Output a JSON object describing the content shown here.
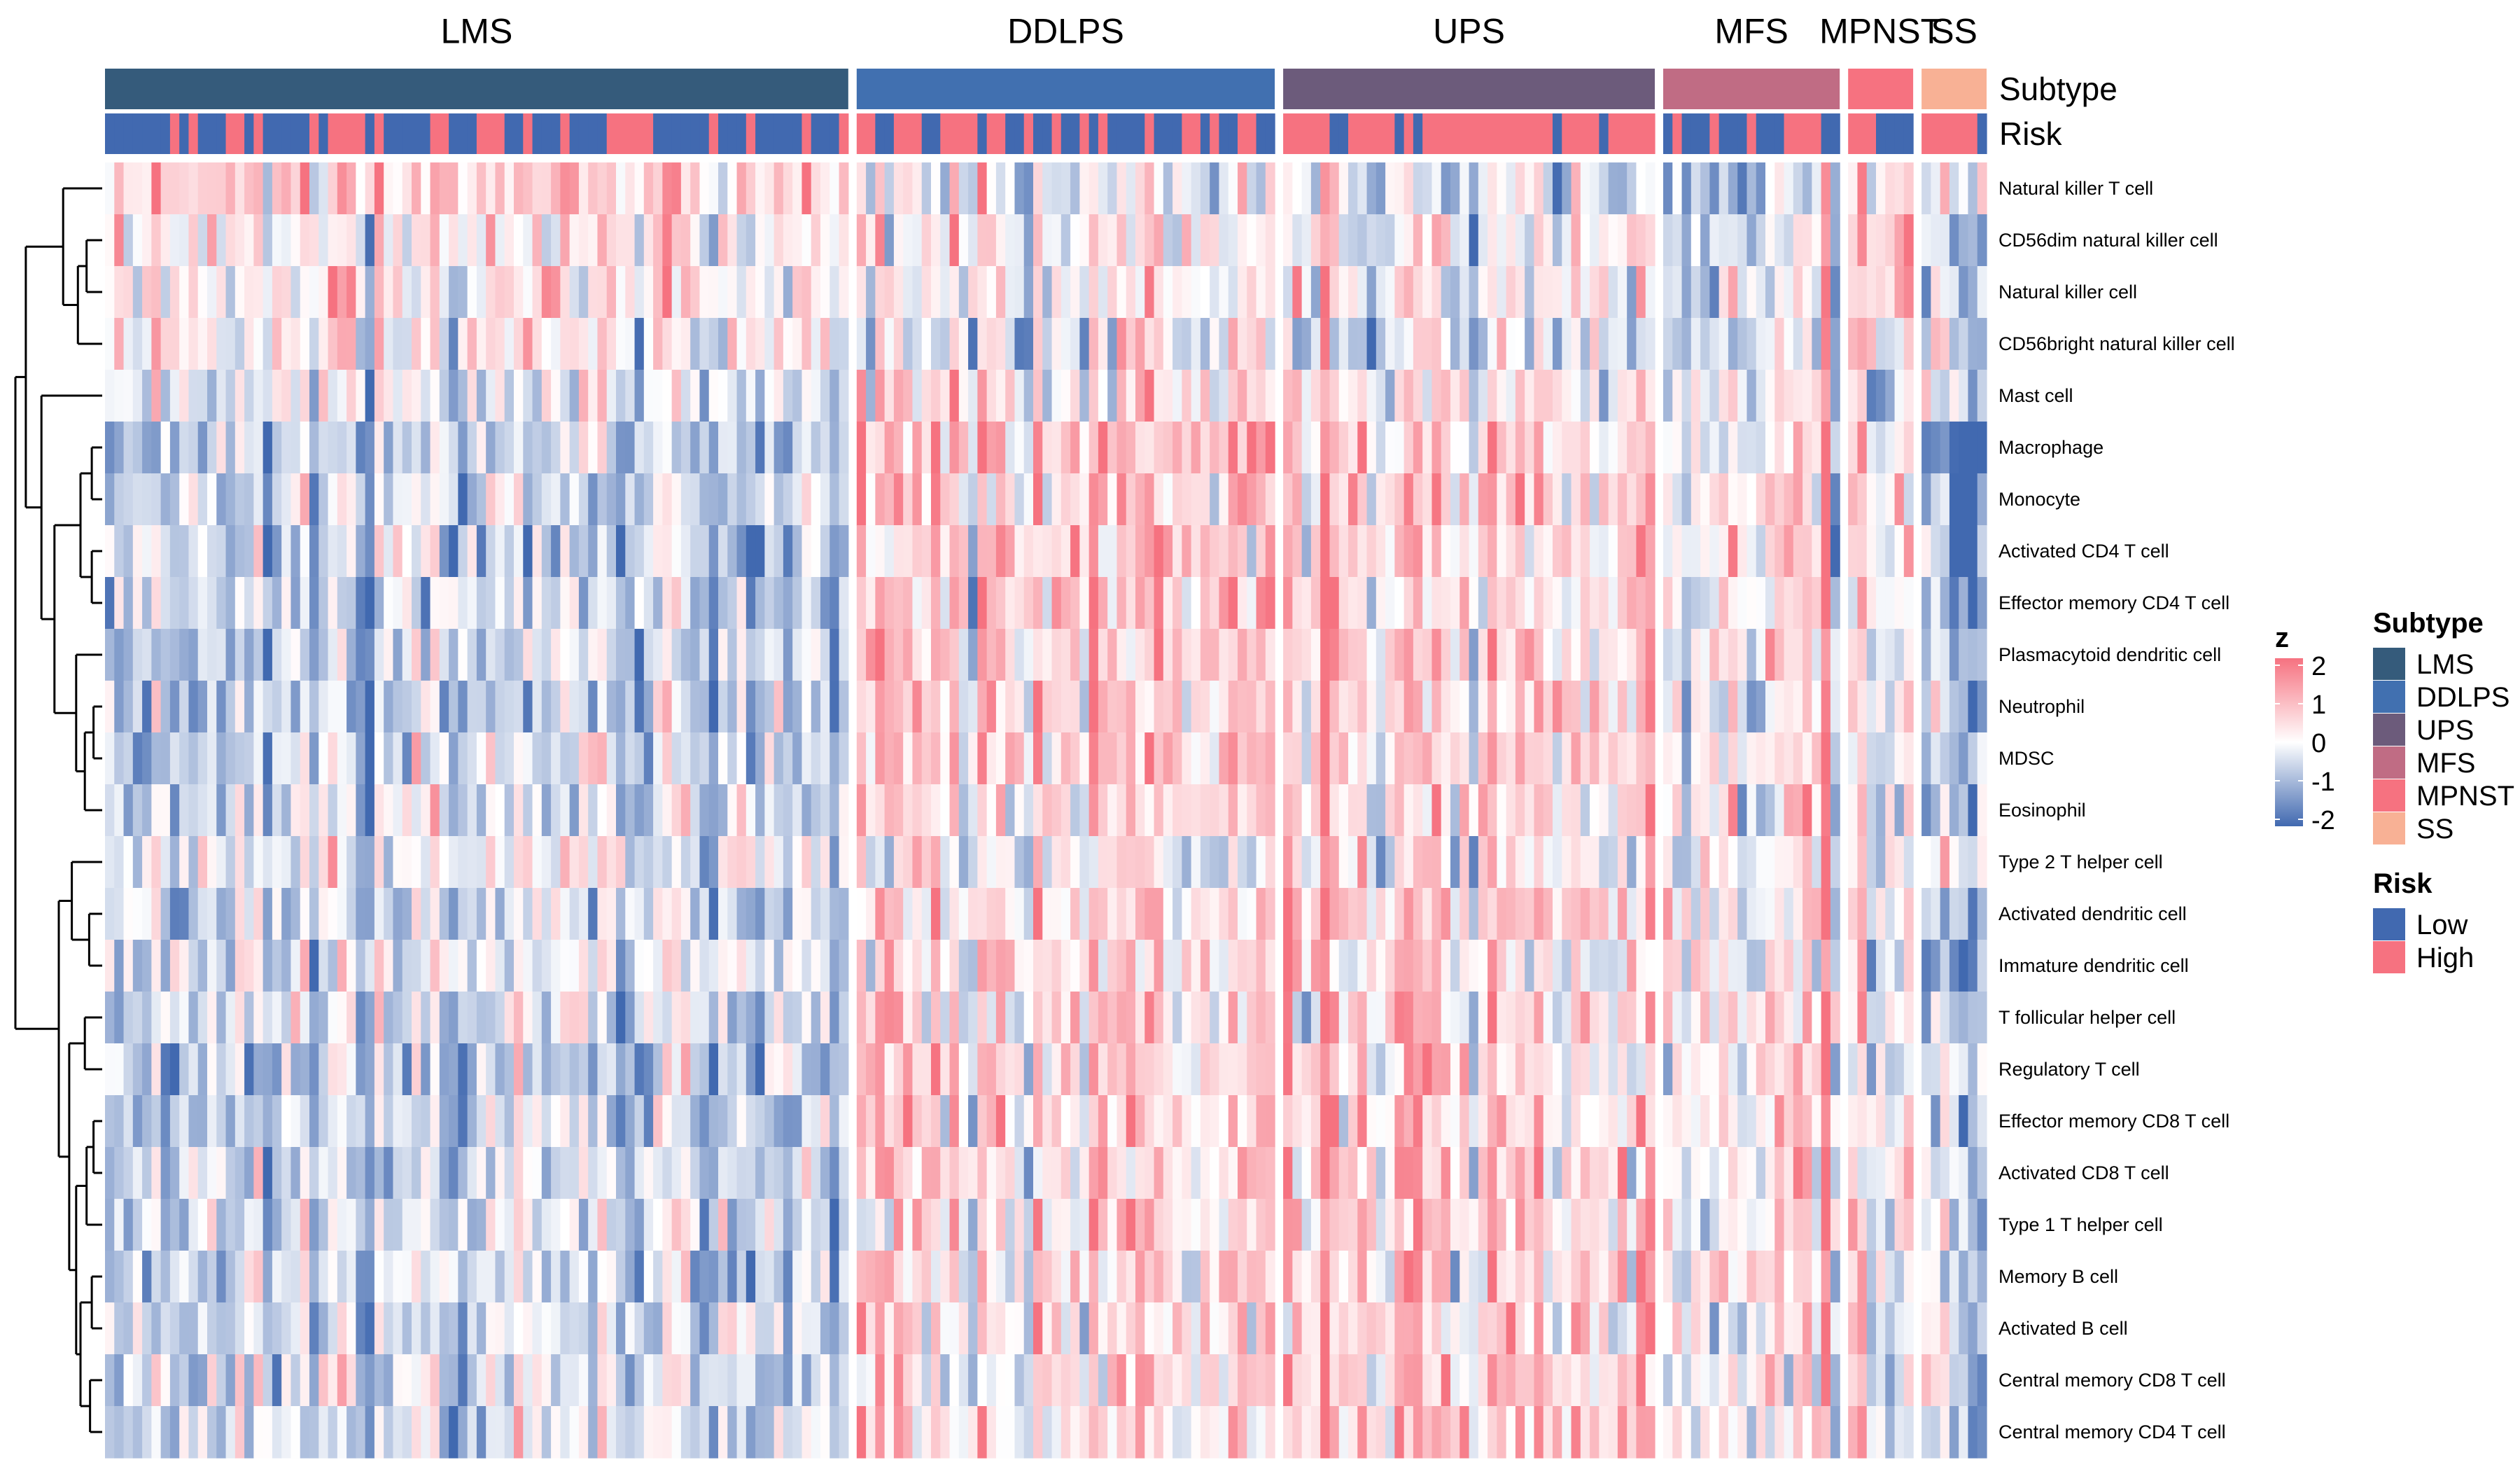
{
  "chart_data": {
    "type": "heatmap",
    "title": "",
    "xlabel": "",
    "ylabel": "",
    "subtype_groups": [
      {
        "name": "LMS",
        "samples": 80,
        "color": "#355B7B"
      },
      {
        "name": "DDLPS",
        "samples": 45,
        "color": "#4170B0"
      },
      {
        "name": "UPS",
        "samples": 40,
        "color": "#6C5B7B"
      },
      {
        "name": "MFS",
        "samples": 19,
        "color": "#C06C84"
      },
      {
        "name": "MPNST",
        "samples": 7,
        "color": "#F67280"
      },
      {
        "name": "SS",
        "samples": 7,
        "color": "#F8B195"
      }
    ],
    "annotation_track_labels": [
      "Subtype",
      "Risk"
    ],
    "rows": [
      "Natural killer T cell",
      "CD56dim natural killer cell",
      "Natural killer cell",
      "CD56bright natural killer cell",
      "Mast cell",
      "Macrophage",
      "Monocyte",
      "Activated CD4 T cell",
      "Effector memory CD4 T cell",
      "Plasmacytoid dendritic cell",
      "Neutrophil",
      "MDSC",
      "Eosinophil",
      "Type 2 T helper cell",
      "Activated dendritic cell",
      "Immature dendritic cell",
      "T follicular helper cell",
      "Regulatory T cell",
      "Effector memory CD8 T cell",
      "Activated CD8 T cell",
      "Type 1 T helper cell",
      "Memory B cell",
      "Activated B cell",
      "Central memory CD8 T cell",
      "Central memory CD4 T cell"
    ],
    "row_mean_z_by_subtype": {
      "LMS": [
        0.7,
        0.3,
        0.3,
        0.3,
        -0.2,
        -0.7,
        -0.6,
        -0.7,
        -0.6,
        -0.5,
        -0.7,
        -0.6,
        -0.5,
        -0.1,
        -0.5,
        -0.3,
        -0.5,
        -0.7,
        -0.6,
        -0.5,
        -0.5,
        -0.5,
        -0.5,
        -0.4,
        -0.4
      ],
      "DDLPS": [
        -0.3,
        0.1,
        0.0,
        -0.2,
        0.2,
        0.7,
        0.6,
        0.6,
        0.6,
        0.4,
        0.6,
        0.6,
        0.3,
        -0.1,
        0.4,
        0.4,
        0.3,
        0.5,
        0.5,
        0.4,
        0.4,
        0.3,
        0.3,
        0.3,
        0.3
      ],
      "UPS": [
        -0.4,
        -0.1,
        -0.1,
        -0.3,
        0.2,
        0.5,
        0.5,
        0.5,
        0.5,
        0.5,
        0.5,
        0.5,
        0.4,
        0.4,
        0.6,
        0.5,
        0.5,
        0.5,
        0.5,
        0.5,
        0.6,
        0.5,
        0.5,
        0.6,
        0.6
      ],
      "MFS": [
        -0.4,
        -0.2,
        -0.2,
        -0.3,
        0.1,
        0.4,
        0.4,
        0.3,
        0.3,
        0.4,
        0.4,
        0.4,
        0.3,
        0.0,
        0.3,
        0.2,
        0.3,
        0.3,
        0.3,
        0.3,
        0.3,
        0.2,
        0.2,
        0.3,
        0.2
      ],
      "MPNST": [
        -0.1,
        0.4,
        0.5,
        -0.1,
        -0.3,
        0.0,
        0.0,
        0.0,
        0.0,
        0.0,
        -0.2,
        -0.2,
        0.0,
        -0.4,
        -0.1,
        -0.2,
        0.0,
        0.0,
        0.0,
        0.0,
        0.0,
        0.0,
        0.0,
        0.0,
        0.0
      ],
      "SS": [
        0.2,
        -0.4,
        -0.5,
        -0.2,
        -0.4,
        -1.5,
        -1.4,
        -1.2,
        -1.3,
        -0.5,
        -0.6,
        -0.6,
        -0.5,
        0.3,
        -0.9,
        -1.2,
        -0.4,
        -0.2,
        -0.3,
        -0.3,
        -0.3,
        -0.3,
        -0.3,
        -0.2,
        -0.2
      ]
    },
    "risk_high_fraction_by_subtype": {
      "LMS": 0.35,
      "DDLPS": 0.55,
      "UPS": 0.7,
      "MFS": 0.45,
      "MPNST": 0.55,
      "SS": 0.7
    },
    "legend_z": {
      "title": "z",
      "ticks": [
        "2",
        "1",
        "0",
        "-1",
        "-2"
      ],
      "range": [
        -2,
        2
      ],
      "colors": {
        "low": "#4169B0",
        "mid": "#FFFFFF",
        "high": "#F67280"
      }
    },
    "legend_subtype": {
      "title": "Subtype",
      "entries": [
        "LMS",
        "DDLPS",
        "UPS",
        "MFS",
        "MPNST",
        "SS"
      ]
    },
    "legend_risk": {
      "title": "Risk",
      "entries": [
        {
          "label": "Low",
          "color": "#4169B0"
        },
        {
          "label": "High",
          "color": "#F67280"
        }
      ]
    },
    "row_dendrogram": true,
    "legend_placement": "right"
  }
}
